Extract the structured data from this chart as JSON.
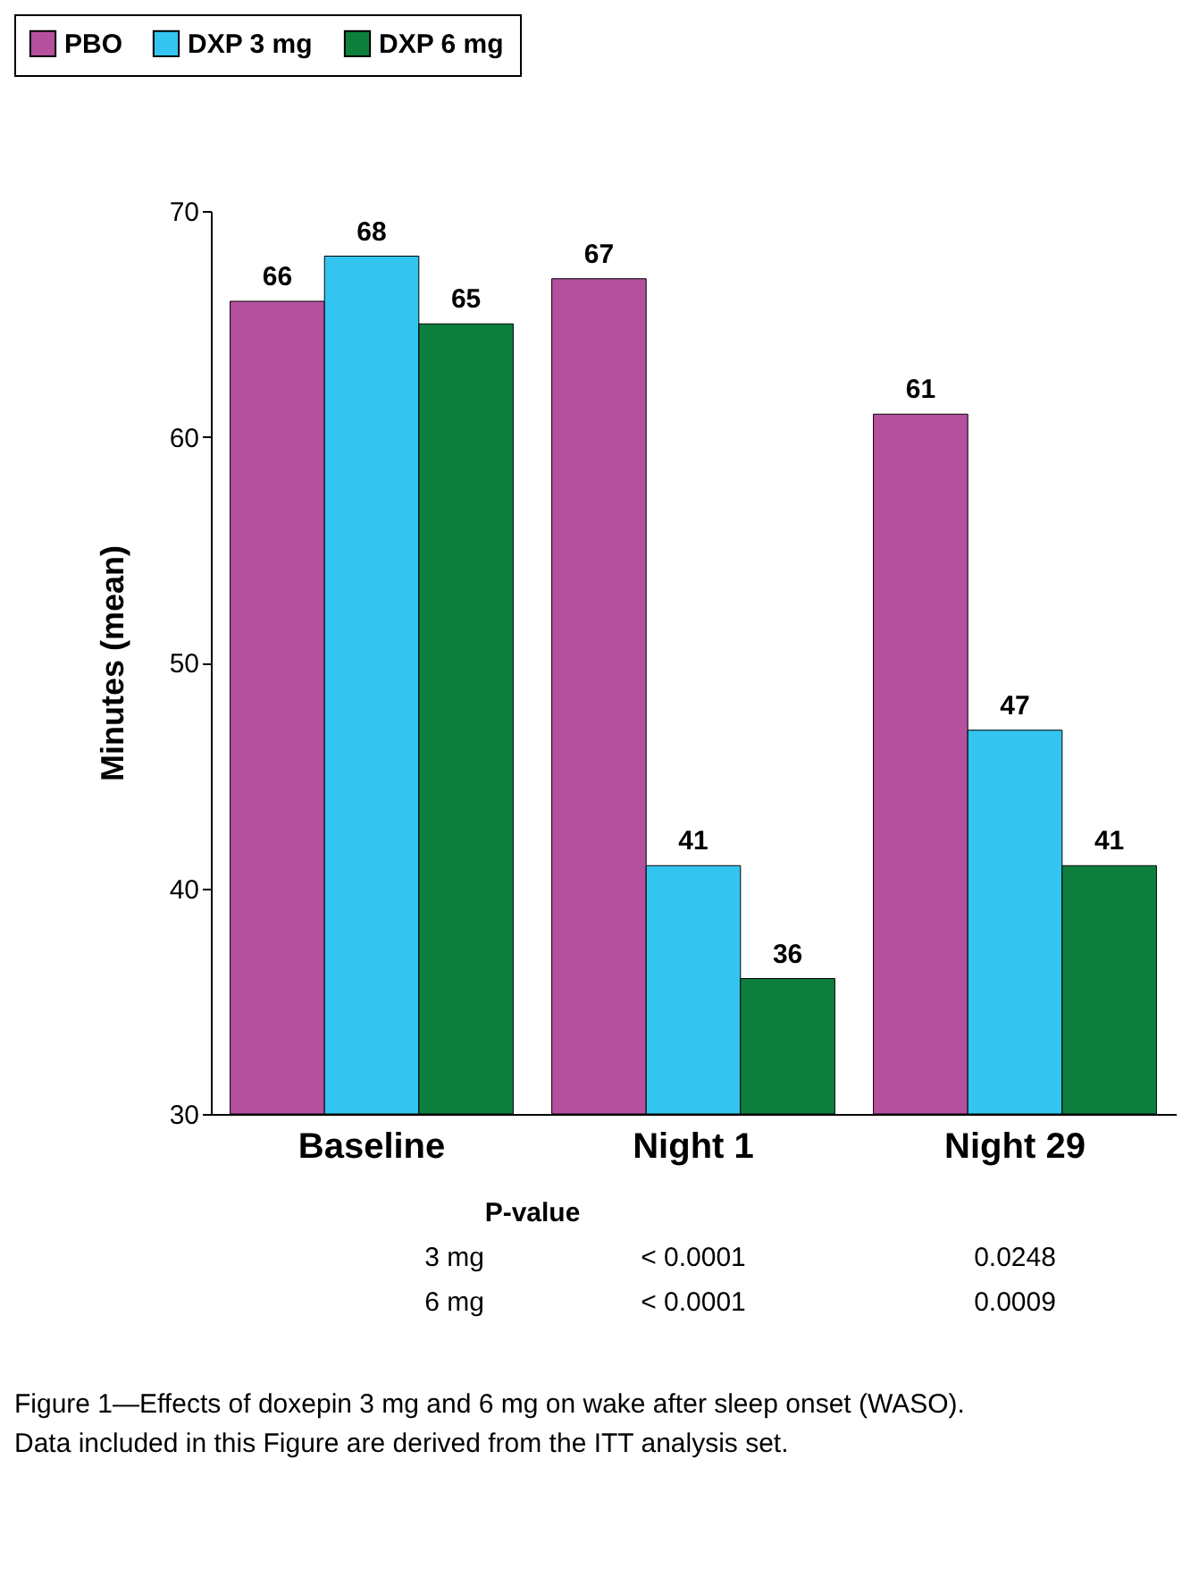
{
  "chart_data": {
    "type": "bar",
    "categories": [
      "Baseline",
      "Night 1",
      "Night 29"
    ],
    "series": [
      {
        "name": "PBO",
        "color": "#b5509e",
        "values": [
          66,
          67,
          61
        ]
      },
      {
        "name": "DXP 3 mg",
        "color": "#33c5f0",
        "values": [
          68,
          41,
          47
        ]
      },
      {
        "name": "DXP 6 mg",
        "color": "#0d7f3d",
        "values": [
          65,
          36,
          41
        ]
      }
    ],
    "ylabel": "Minutes (mean)",
    "ylim": [
      30,
      70
    ],
    "yticks": [
      30,
      40,
      50,
      60,
      70
    ],
    "data_labels": true,
    "grid": false,
    "legend": "top left",
    "annotations": [
      "P-value",
      "3 mg",
      "< 0.0001",
      "0.0248",
      "6 mg",
      "< 0.0001",
      "0.0009",
      "Figure 1—Effects of doxepin 3 mg and 6 mg on wake after sleep onset (WASO). Data included in this Figure are derived from the ITT analysis set."
    ]
  }
}
